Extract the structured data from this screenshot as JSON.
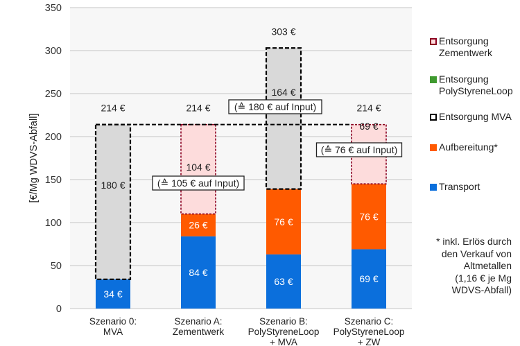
{
  "chart_data": {
    "type": "bar",
    "stacked": true,
    "title": "",
    "xlabel": "",
    "ylabel": "[€/Mg WDVS-Abfall]",
    "ylim": [
      0,
      350
    ],
    "yticks": [
      0,
      50,
      100,
      150,
      200,
      250,
      300,
      350
    ],
    "grid": true,
    "legend_position": "right",
    "categories": [
      [
        "Szenario 0:",
        "MVA"
      ],
      [
        "Szenario A:",
        "Zementwerk"
      ],
      [
        "Szenario B:",
        "PolyStyreneLoop",
        "+ MVA"
      ],
      [
        "Szenario C:",
        "PolyStyreneLoop",
        "+ ZW"
      ]
    ],
    "series": [
      {
        "name": "Transport",
        "color": "#0b6fdc",
        "style": "solid",
        "values": [
          34,
          84,
          63,
          69
        ],
        "labels": [
          "34 €",
          "84 €",
          "63 €",
          "69 €"
        ]
      },
      {
        "name": "Aufbereitung*",
        "color": "#ff5a00",
        "style": "solid",
        "values": [
          0,
          26,
          76,
          76
        ],
        "labels": [
          "",
          "26 €",
          "76 €",
          "76 €"
        ]
      },
      {
        "name": "Entsorgung MVA",
        "color": "#d9d9d9",
        "border": "#000000",
        "style": "dashed",
        "values": [
          180,
          0,
          164,
          0
        ],
        "labels": [
          "180 €",
          "",
          "164 €",
          ""
        ]
      },
      {
        "name": "Entsorgung PolyStyreneLoop",
        "color": "#3f9a2f",
        "style": "solid",
        "values": [
          0,
          0,
          0,
          0
        ],
        "labels": [
          "",
          "",
          "",
          ""
        ]
      },
      {
        "name": "Entsorgung Zementwerk",
        "color": "#fddcdc",
        "border": "#8b0020",
        "style": "dashed",
        "values": [
          0,
          104,
          0,
          69
        ],
        "labels": [
          "",
          "104 €",
          "",
          "69 €"
        ]
      }
    ],
    "totals": [
      "214 €",
      "214 €",
      "303 €",
      "214 €"
    ],
    "reference_line": {
      "value": 214,
      "style": "dashed"
    },
    "annotations": [
      "",
      "(≙ 105 € auf Input)",
      "(≙ 180 € auf Input)",
      "(≙ 76 € auf Input)"
    ]
  },
  "legend": {
    "items": [
      {
        "lines": [
          "Entsorgung",
          "Zementwerk"
        ],
        "fill": "#fddcdc",
        "border": "#8b0020",
        "icon": "square-outline-icon"
      },
      {
        "lines": [
          "Entsorgung",
          "PolyStyreneLoop"
        ],
        "fill": "#3f9a2f",
        "border": "#3f9a2f",
        "icon": "square-icon"
      },
      {
        "lines": [
          "Entsorgung MVA"
        ],
        "fill": "#ffffff",
        "border": "#000000",
        "icon": "dashed-square-icon"
      },
      {
        "lines": [
          "Aufbereitung*"
        ],
        "fill": "#ff5a00",
        "border": "#ff5a00",
        "icon": "square-icon"
      },
      {
        "lines": [
          "Transport"
        ],
        "fill": "#0b6fdc",
        "border": "#0b6fdc",
        "icon": "square-icon"
      }
    ]
  },
  "footnote": {
    "lines": [
      "* inkl. Erlös durch",
      "den Verkauf von",
      "Altmetallen",
      "(1,16 € je Mg",
      "WDVS-Abfall)"
    ]
  }
}
